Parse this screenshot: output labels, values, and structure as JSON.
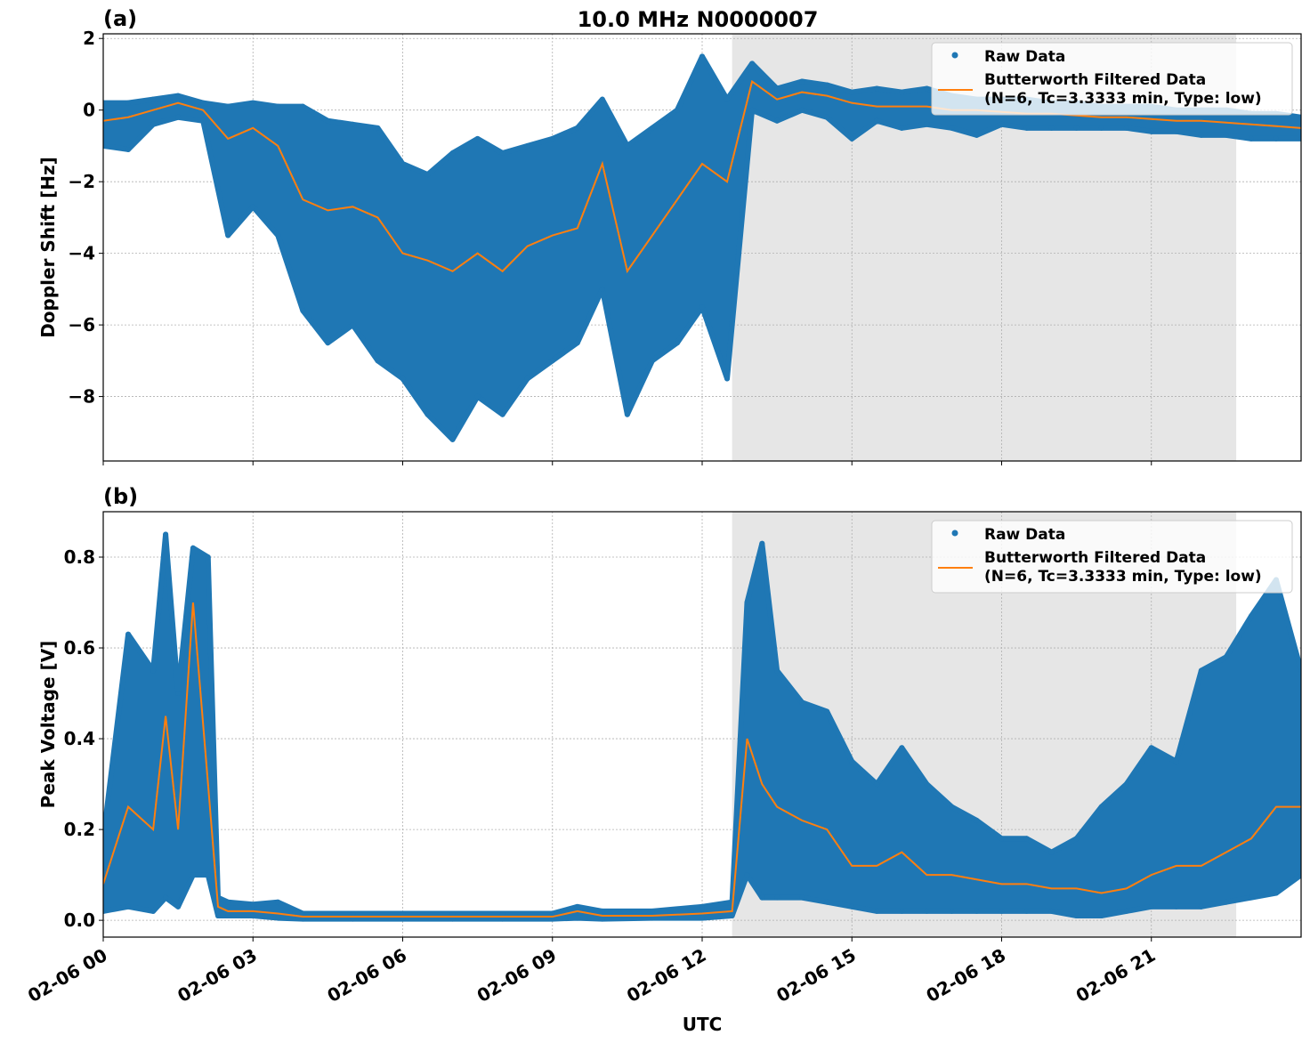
{
  "title": "10.0 MHz N0000007",
  "colors": {
    "raw": "#1f77b4",
    "filtered": "#ff7f0e",
    "shade": "#e6e6e6",
    "grid": "#b0b0b0"
  },
  "legend": {
    "raw": "Raw Data",
    "filtered_line1": "Butterworth Filtered Data",
    "filtered_line2": "(N=6, Tc=3.3333 min, Type: low)",
    "placement": "top-right"
  },
  "chart_data": [
    {
      "type": "scatter+line",
      "panel_label": "(a)",
      "ylabel": "Doppler Shift [Hz]",
      "xlabel": "",
      "x_unit": "hours after 02-06 00 UTC",
      "xlim": [
        0,
        24
      ],
      "ylim": [
        -9.8,
        2.13
      ],
      "yticks": [
        2,
        0,
        -2,
        -4,
        -6,
        -8
      ],
      "ytick_labels": [
        "2",
        "0",
        "−2",
        "−4",
        "−6",
        "−8"
      ],
      "grid": true,
      "shaded_span": [
        12.6,
        22.7
      ],
      "series_columns": [
        "hour",
        "filtered",
        "raw_min",
        "raw_max"
      ],
      "series": [
        [
          0,
          -0.3,
          -1.0,
          0.2
        ],
        [
          0.5,
          -0.2,
          -1.1,
          0.2
        ],
        [
          1,
          0.0,
          -0.4,
          0.3
        ],
        [
          1.5,
          0.2,
          -0.2,
          0.4
        ],
        [
          2,
          0.0,
          -0.3,
          0.2
        ],
        [
          2.5,
          -0.8,
          -3.5,
          0.1
        ],
        [
          3,
          -0.5,
          -2.7,
          0.2
        ],
        [
          3.5,
          -1.0,
          -3.5,
          0.1
        ],
        [
          4,
          -2.5,
          -5.6,
          0.1
        ],
        [
          4.5,
          -2.8,
          -6.5,
          -0.3
        ],
        [
          5,
          -2.7,
          -6.0,
          -0.4
        ],
        [
          5.5,
          -3.0,
          -7.0,
          -0.5
        ],
        [
          6,
          -4.0,
          -7.5,
          -1.5
        ],
        [
          6.5,
          -4.2,
          -8.5,
          -1.8
        ],
        [
          7,
          -4.5,
          -9.2,
          -1.2
        ],
        [
          7.5,
          -4.0,
          -8.0,
          -0.8
        ],
        [
          8,
          -4.5,
          -8.5,
          -1.2
        ],
        [
          8.5,
          -3.8,
          -7.5,
          -1.0
        ],
        [
          9,
          -3.5,
          -7.0,
          -0.8
        ],
        [
          9.5,
          -3.3,
          -6.5,
          -0.5
        ],
        [
          10,
          -1.5,
          -5.0,
          0.3
        ],
        [
          10.5,
          -4.5,
          -8.5,
          -1.0
        ],
        [
          11,
          -3.5,
          -7.0,
          -0.5
        ],
        [
          11.5,
          -2.5,
          -6.5,
          0.0
        ],
        [
          12,
          -1.5,
          -5.5,
          1.5
        ],
        [
          12.5,
          -2.0,
          -7.5,
          0.3
        ],
        [
          13,
          0.8,
          0.0,
          1.3
        ],
        [
          13.5,
          0.3,
          -0.3,
          0.6
        ],
        [
          14,
          0.5,
          0.0,
          0.8
        ],
        [
          14.5,
          0.4,
          -0.2,
          0.7
        ],
        [
          15,
          0.2,
          -0.8,
          0.5
        ],
        [
          15.5,
          0.1,
          -0.3,
          0.6
        ],
        [
          16,
          0.1,
          -0.5,
          0.5
        ],
        [
          16.5,
          0.1,
          -0.4,
          0.6
        ],
        [
          17,
          0.0,
          -0.5,
          0.4
        ],
        [
          17.5,
          0.0,
          -0.7,
          0.3
        ],
        [
          18,
          -0.05,
          -0.4,
          0.3
        ],
        [
          18.5,
          -0.1,
          -0.5,
          0.3
        ],
        [
          19,
          -0.1,
          -0.5,
          0.2
        ],
        [
          19.5,
          -0.15,
          -0.5,
          0.2
        ],
        [
          20,
          -0.2,
          -0.5,
          0.1
        ],
        [
          20.5,
          -0.2,
          -0.5,
          0.1
        ],
        [
          21,
          -0.25,
          -0.6,
          0.1
        ],
        [
          21.5,
          -0.3,
          -0.6,
          0.0
        ],
        [
          22,
          -0.3,
          -0.7,
          0.0
        ],
        [
          22.5,
          -0.35,
          -0.7,
          0.0
        ],
        [
          23,
          -0.4,
          -0.8,
          -0.1
        ],
        [
          23.5,
          -0.45,
          -0.8,
          -0.1
        ],
        [
          24,
          -0.5,
          -0.8,
          -0.2
        ]
      ]
    },
    {
      "type": "scatter+line",
      "panel_label": "(b)",
      "ylabel": "Peak Voltage [V]",
      "xlabel": "UTC",
      "x_unit": "hours after 02-06 00 UTC",
      "xlim": [
        0,
        24
      ],
      "ylim": [
        -0.037,
        0.9
      ],
      "yticks": [
        0.8,
        0.6,
        0.4,
        0.2,
        0.0
      ],
      "ytick_labels": [
        "0.8",
        "0.6",
        "0.4",
        "0.2",
        "0.0"
      ],
      "grid": true,
      "shaded_span": [
        12.6,
        22.7
      ],
      "xticks": [
        0,
        3,
        6,
        9,
        12,
        15,
        18,
        21
      ],
      "xtick_labels": [
        "02-06 00",
        "02-06 03",
        "02-06 06",
        "02-06 09",
        "02-06 12",
        "02-06 15",
        "02-06 18",
        "02-06 21"
      ],
      "series_columns": [
        "hour",
        "filtered",
        "raw_min",
        "raw_max"
      ],
      "series": [
        [
          0,
          0.08,
          0.02,
          0.18
        ],
        [
          0.5,
          0.25,
          0.03,
          0.63
        ],
        [
          1,
          0.2,
          0.02,
          0.55
        ],
        [
          1.25,
          0.45,
          0.05,
          0.85
        ],
        [
          1.5,
          0.2,
          0.03,
          0.5
        ],
        [
          1.8,
          0.7,
          0.1,
          0.82
        ],
        [
          2.1,
          0.3,
          0.1,
          0.8
        ],
        [
          2.3,
          0.03,
          0.01,
          0.05
        ],
        [
          2.5,
          0.02,
          0.01,
          0.04
        ],
        [
          3,
          0.02,
          0.01,
          0.035
        ],
        [
          3.5,
          0.015,
          0.005,
          0.04
        ],
        [
          4,
          0.008,
          0.003,
          0.015
        ],
        [
          5,
          0.008,
          0.003,
          0.015
        ],
        [
          6,
          0.008,
          0.003,
          0.015
        ],
        [
          7,
          0.008,
          0.003,
          0.015
        ],
        [
          8,
          0.008,
          0.003,
          0.015
        ],
        [
          9,
          0.008,
          0.003,
          0.015
        ],
        [
          9.5,
          0.02,
          0.005,
          0.03
        ],
        [
          10,
          0.01,
          0.003,
          0.02
        ],
        [
          11,
          0.01,
          0.005,
          0.02
        ],
        [
          12,
          0.015,
          0.005,
          0.03
        ],
        [
          12.6,
          0.02,
          0.01,
          0.04
        ],
        [
          12.9,
          0.4,
          0.1,
          0.7
        ],
        [
          13.2,
          0.3,
          0.05,
          0.83
        ],
        [
          13.5,
          0.25,
          0.05,
          0.55
        ],
        [
          14,
          0.22,
          0.05,
          0.48
        ],
        [
          14.5,
          0.2,
          0.04,
          0.46
        ],
        [
          15,
          0.12,
          0.03,
          0.35
        ],
        [
          15.5,
          0.12,
          0.02,
          0.3
        ],
        [
          16,
          0.15,
          0.02,
          0.38
        ],
        [
          16.5,
          0.1,
          0.02,
          0.3
        ],
        [
          17,
          0.1,
          0.02,
          0.25
        ],
        [
          17.5,
          0.09,
          0.02,
          0.22
        ],
        [
          18,
          0.08,
          0.02,
          0.18
        ],
        [
          18.5,
          0.08,
          0.02,
          0.18
        ],
        [
          19,
          0.07,
          0.02,
          0.15
        ],
        [
          19.5,
          0.07,
          0.01,
          0.18
        ],
        [
          20,
          0.06,
          0.01,
          0.25
        ],
        [
          20.5,
          0.07,
          0.02,
          0.3
        ],
        [
          21,
          0.1,
          0.03,
          0.38
        ],
        [
          21.5,
          0.12,
          0.03,
          0.35
        ],
        [
          22,
          0.12,
          0.03,
          0.55
        ],
        [
          22.5,
          0.15,
          0.04,
          0.58
        ],
        [
          23,
          0.18,
          0.05,
          0.67
        ],
        [
          23.5,
          0.25,
          0.06,
          0.75
        ],
        [
          24,
          0.25,
          0.1,
          0.55
        ]
      ]
    }
  ]
}
